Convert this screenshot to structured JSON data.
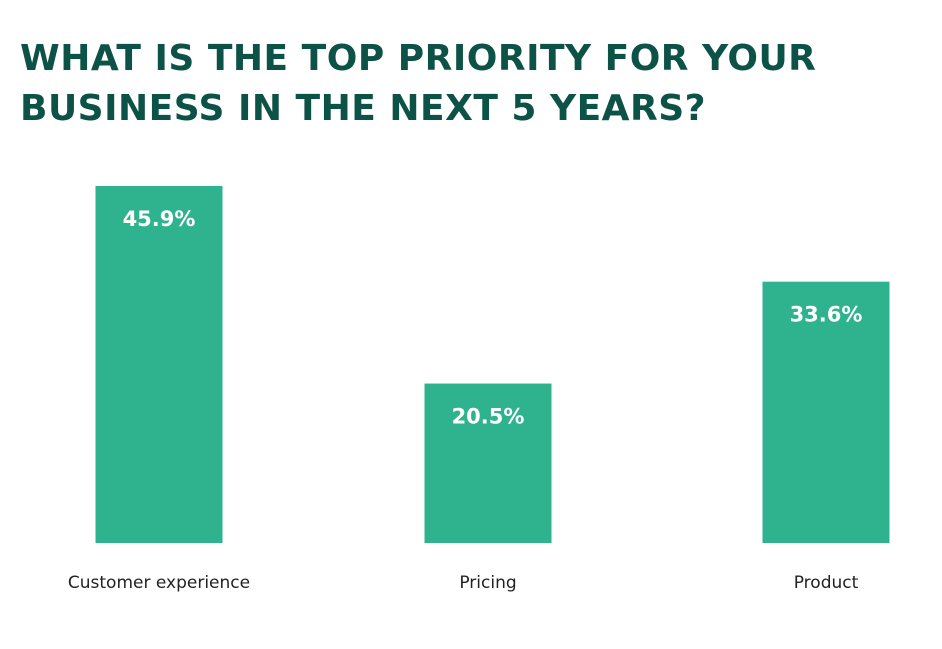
{
  "title_lines": [
    "WHAT IS THE TOP PRIORITY FOR YOUR",
    "BUSINESS IN THE NEXT 5 YEARS?"
  ],
  "bar_color": "#2fb38e",
  "title_color": "#0d5246",
  "chart_data": {
    "type": "bar",
    "title": "WHAT IS THE TOP PRIORITY FOR YOUR BUSINESS IN THE NEXT 5 YEARS?",
    "categories": [
      "Customer experience",
      "Pricing",
      "Product"
    ],
    "values": [
      45.9,
      20.5,
      33.6
    ],
    "value_labels": [
      "45.9%",
      "20.5%",
      "33.6%"
    ],
    "unit": "%",
    "ylim": [
      0,
      45.9
    ],
    "grid": false,
    "legend": "none"
  }
}
